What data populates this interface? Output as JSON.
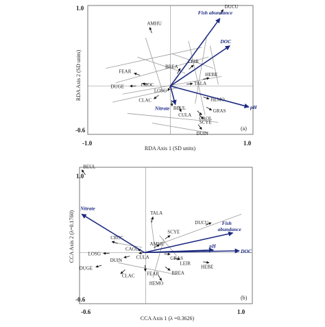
{
  "chart_data": [
    {
      "type": "scatter",
      "panel_label": "(a)",
      "xlabel": "RDA Axis 1 (SD units)",
      "ylabel": "RDA Axis 2 (SD units)",
      "xlim": [
        -1.0,
        1.0
      ],
      "ylim": [
        -0.6,
        1.0
      ],
      "tick_labels": {
        "x_min": "-1.0",
        "x_max": "1.0",
        "y_min": "-0.6",
        "y_max": "1.0"
      },
      "grid": false,
      "species": [
        {
          "name": "DUCU",
          "x": 0.64,
          "y": 0.95
        },
        {
          "name": "AMHU",
          "x": -0.25,
          "y": 0.73
        },
        {
          "name": "LEIR",
          "x": 0.28,
          "y": 0.26
        },
        {
          "name": "BREA",
          "x": 0.12,
          "y": 0.22
        },
        {
          "name": "HEBE",
          "x": 0.47,
          "y": 0.1
        },
        {
          "name": "FEAR",
          "x": -0.44,
          "y": 0.16
        },
        {
          "name": "TALA",
          "x": 0.27,
          "y": 0.03
        },
        {
          "name": "CROC",
          "x": -0.34,
          "y": 0.03
        },
        {
          "name": "DUGE",
          "x": -0.49,
          "y": 0.0
        },
        {
          "name": "LOSG",
          "x": -0.03,
          "y": -0.06
        },
        {
          "name": "CLAC",
          "x": -0.2,
          "y": -0.16
        },
        {
          "name": "HEMO",
          "x": 0.47,
          "y": -0.16
        },
        {
          "name": "BEUL",
          "x": 0.02,
          "y": -0.25
        },
        {
          "name": "CULA",
          "x": 0.13,
          "y": -0.32
        },
        {
          "name": "GRAS",
          "x": 0.5,
          "y": -0.3
        },
        {
          "name": "CAOL",
          "x": 0.38,
          "y": -0.36
        },
        {
          "name": "SCYE",
          "x": 0.4,
          "y": -0.41
        },
        {
          "name": "DUIN",
          "x": 0.38,
          "y": -0.54
        }
      ],
      "environmental_vectors": [
        {
          "name": "Fish abundance",
          "x": 0.6,
          "y": 0.84
        },
        {
          "name": "DOC",
          "x": 0.72,
          "y": 0.5
        },
        {
          "name": "pH",
          "x": 0.95,
          "y": -0.26
        },
        {
          "name": "Nitrate",
          "x": 0.06,
          "y": -0.23
        }
      ]
    },
    {
      "type": "scatter",
      "panel_label": "(b)",
      "xlabel": "CCA Axis 1 (λ =0.3626)",
      "ylabel": "CCA Axis 2 (λ=0.1760)",
      "xlim": [
        -0.6,
        1.0
      ],
      "ylim": [
        -0.6,
        1.0
      ],
      "tick_labels": {
        "x_min": "-0.6",
        "x_max": "1.0",
        "y_min": "-0.6",
        "y_max": "1.0"
      },
      "grid": false,
      "species": [
        {
          "name": "BEUL",
          "x": -0.58,
          "y": 0.97
        },
        {
          "name": "TALA",
          "x": 0.08,
          "y": 0.42
        },
        {
          "name": "DUCU",
          "x": 0.62,
          "y": 0.35
        },
        {
          "name": "SCYE",
          "x": 0.24,
          "y": 0.2
        },
        {
          "name": "CROC",
          "x": -0.3,
          "y": 0.13
        },
        {
          "name": "AMHU",
          "x": 0.14,
          "y": 0.09
        },
        {
          "name": "CAOL",
          "x": -0.06,
          "y": 0.04
        },
        {
          "name": "LOSG",
          "x": -0.38,
          "y": -0.01
        },
        {
          "name": "CULA",
          "x": -0.05,
          "y": -0.01
        },
        {
          "name": "GRAS",
          "x": 0.24,
          "y": -0.02
        },
        {
          "name": "DUIN",
          "x": -0.19,
          "y": -0.06
        },
        {
          "name": "LEIR",
          "x": 0.33,
          "y": -0.08
        },
        {
          "name": "HEBE",
          "x": 0.6,
          "y": -0.12
        },
        {
          "name": "DUGE",
          "x": -0.45,
          "y": -0.17
        },
        {
          "name": "CLAC",
          "x": -0.22,
          "y": -0.25
        },
        {
          "name": "FEAR",
          "x": 0.01,
          "y": -0.22
        },
        {
          "name": "BREA",
          "x": 0.24,
          "y": -0.21
        },
        {
          "name": "HEMO",
          "x": 0.16,
          "y": -0.33
        }
      ],
      "environmental_vectors": [
        {
          "name": "Nitrate",
          "x": -0.58,
          "y": 0.45
        },
        {
          "name": "Fish abundance",
          "x": 0.82,
          "y": 0.23
        },
        {
          "name": "pH",
          "x": 0.64,
          "y": 0.03
        },
        {
          "name": "DOC",
          "x": 0.88,
          "y": 0.02
        }
      ]
    }
  ]
}
